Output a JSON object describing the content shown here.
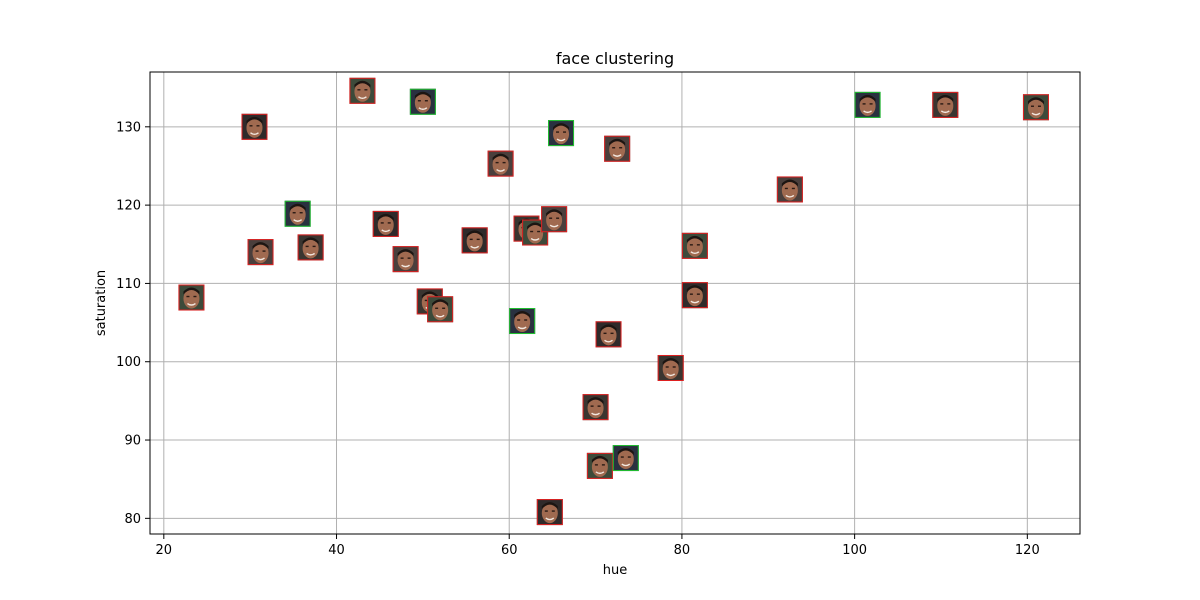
{
  "chart_data": {
    "type": "scatter",
    "title": "face clustering",
    "xlabel": "hue",
    "ylabel": "saturation",
    "xlim": [
      18.4,
      126.1
    ],
    "ylim": [
      78.0,
      137.0
    ],
    "xticks": [
      20,
      40,
      60,
      80,
      100,
      120
    ],
    "yticks": [
      80,
      90,
      100,
      110,
      120,
      130
    ],
    "grid": true,
    "marker": "face-thumbnail",
    "points": [
      {
        "x": 23.2,
        "y": 108.2
      },
      {
        "x": 30.5,
        "y": 130.0
      },
      {
        "x": 31.2,
        "y": 114.0
      },
      {
        "x": 35.5,
        "y": 118.9
      },
      {
        "x": 37.0,
        "y": 114.6
      },
      {
        "x": 43.0,
        "y": 134.6
      },
      {
        "x": 45.7,
        "y": 117.6
      },
      {
        "x": 48.0,
        "y": 113.1
      },
      {
        "x": 50.0,
        "y": 133.2
      },
      {
        "x": 50.8,
        "y": 107.7
      },
      {
        "x": 52.0,
        "y": 106.7
      },
      {
        "x": 56.0,
        "y": 115.5
      },
      {
        "x": 59.0,
        "y": 125.3
      },
      {
        "x": 61.5,
        "y": 105.2
      },
      {
        "x": 62.0,
        "y": 117.0
      },
      {
        "x": 63.0,
        "y": 116.5
      },
      {
        "x": 64.7,
        "y": 80.8
      },
      {
        "x": 65.2,
        "y": 118.2
      },
      {
        "x": 66.0,
        "y": 129.2
      },
      {
        "x": 70.0,
        "y": 94.2
      },
      {
        "x": 70.5,
        "y": 86.7
      },
      {
        "x": 71.5,
        "y": 103.5
      },
      {
        "x": 72.5,
        "y": 127.2
      },
      {
        "x": 73.5,
        "y": 87.7
      },
      {
        "x": 78.7,
        "y": 99.2
      },
      {
        "x": 81.5,
        "y": 114.8
      },
      {
        "x": 81.5,
        "y": 108.5
      },
      {
        "x": 92.5,
        "y": 122.0
      },
      {
        "x": 101.5,
        "y": 132.8
      },
      {
        "x": 110.5,
        "y": 132.8
      },
      {
        "x": 121.0,
        "y": 132.5
      }
    ]
  }
}
